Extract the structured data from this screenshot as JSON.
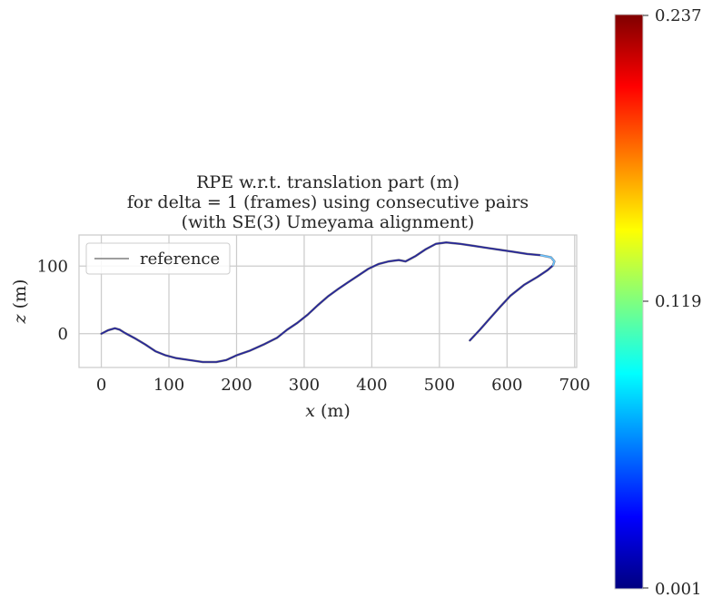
{
  "chart_data": {
    "type": "line",
    "title_lines": [
      "RPE w.r.t. translation part (m)",
      "for delta = 1 (frames) using consecutive pairs",
      "(with SE(3) Umeyama alignment)"
    ],
    "xlabel_var": "x",
    "xlabel_unit": " (m)",
    "ylabel_var": "z",
    "ylabel_unit": " (m)",
    "xlim": [
      -33,
      703
    ],
    "ylim": [
      -50,
      146
    ],
    "xticks": [
      0,
      100,
      200,
      300,
      400,
      500,
      600,
      700
    ],
    "yticks": [
      0,
      100
    ],
    "grid": true,
    "legend": {
      "placement": "top-left",
      "entries": [
        "reference"
      ]
    },
    "series": [
      {
        "name": "reference",
        "color": "#7f7f7f",
        "x": [
          0,
          10,
          20,
          27,
          35,
          50,
          65,
          80,
          95,
          110,
          130,
          150,
          170,
          185,
          200,
          220,
          240,
          260,
          275,
          290,
          305,
          320,
          335,
          350,
          365,
          380,
          395,
          410,
          425,
          440,
          450,
          465,
          480,
          495,
          510,
          530,
          550,
          570,
          590,
          610,
          630,
          650,
          665,
          670,
          668,
          660,
          645,
          625,
          605,
          590,
          575,
          560,
          545
        ],
        "y": [
          0,
          5,
          8,
          6,
          1,
          -7,
          -16,
          -26,
          -32,
          -36,
          -39,
          -42,
          -42,
          -39,
          -32,
          -25,
          -16,
          -6,
          6,
          16,
          28,
          42,
          55,
          66,
          76,
          86,
          96,
          103,
          107,
          109,
          107,
          115,
          125,
          133,
          135,
          133,
          130,
          127,
          124,
          121,
          118,
          116,
          113,
          107,
          101,
          94,
          84,
          72,
          56,
          40,
          23,
          6,
          -10
        ]
      }
    ],
    "colorbar": {
      "min_label": "0.001",
      "mid_label": "0.119",
      "max_label": "0.237",
      "colormap": "jet",
      "stops": [
        "#00007f",
        "#0000ff",
        "#007fff",
        "#00ffff",
        "#7fff7f",
        "#ffff00",
        "#ff7f00",
        "#ff0000",
        "#7f0000"
      ]
    },
    "error_overlay_color": "#1c1c9e",
    "error_highlight_color": "#6ec8ff"
  }
}
